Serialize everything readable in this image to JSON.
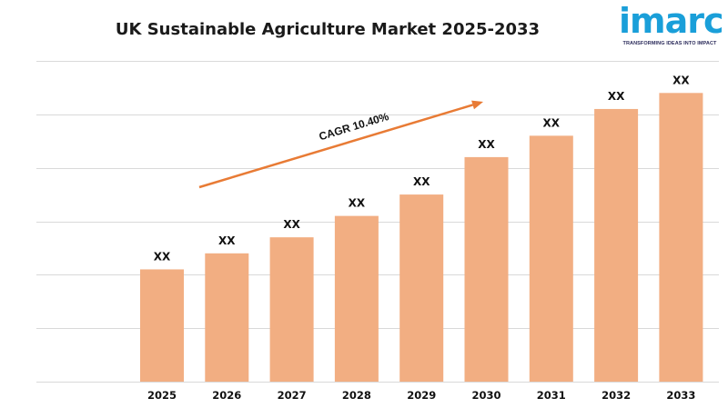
{
  "logo": {
    "word": "imarc",
    "tagline": "TRANSFORMING IDEAS INTO IMPACT"
  },
  "chart_data": {
    "type": "bar",
    "title": "UK Sustainable Agriculture Market 2025-2033",
    "categories": [
      "2025",
      "2026",
      "2027",
      "2028",
      "2029",
      "2030",
      "2031",
      "2032",
      "2033"
    ],
    "values": [
      2.1,
      2.4,
      2.7,
      3.1,
      3.5,
      4.2,
      4.6,
      5.1,
      5.4
    ],
    "data_labels": [
      "XX",
      "XX",
      "XX",
      "XX",
      "XX",
      "XX",
      "XX",
      "XX",
      "XX"
    ],
    "ylim": [
      0,
      6
    ],
    "grid": true,
    "annotation": {
      "text": "CAGR  10.40%",
      "arrow": "up-right"
    },
    "colors": {
      "bar": "#F2AE82",
      "arrow": "#E87B35",
      "grid": "#D9D9D9"
    }
  }
}
